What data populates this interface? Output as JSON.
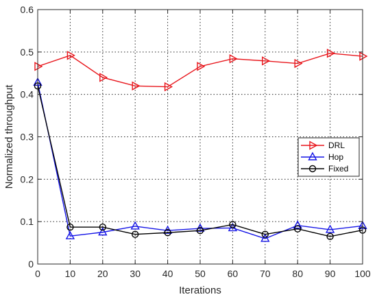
{
  "chart_data": {
    "type": "line",
    "title": "",
    "xlabel": "Iterations",
    "ylabel": "Normalized throughput",
    "x": [
      0,
      10,
      20,
      30,
      40,
      50,
      60,
      70,
      80,
      90,
      100
    ],
    "xlim": [
      0,
      100
    ],
    "ylim": [
      0,
      0.6
    ],
    "xticks": [
      "0",
      "10",
      "20",
      "30",
      "40",
      "50",
      "60",
      "70",
      "80",
      "90",
      "100"
    ],
    "yticks": [
      "0",
      "0.1",
      "0.2",
      "0.3",
      "0.4",
      "0.5",
      "0.6"
    ],
    "grid": true,
    "legend_position": "right",
    "series": [
      {
        "name": "DRL",
        "color": "#e8141a",
        "marker": "triangle-right",
        "values": [
          0.466,
          0.492,
          0.44,
          0.42,
          0.418,
          0.466,
          0.484,
          0.479,
          0.473,
          0.497,
          0.49
        ]
      },
      {
        "name": "Hop",
        "color": "#1414e6",
        "marker": "triangle-up",
        "values": [
          0.428,
          0.066,
          0.075,
          0.089,
          0.079,
          0.084,
          0.085,
          0.06,
          0.091,
          0.081,
          0.09
        ]
      },
      {
        "name": "Fixed",
        "color": "#000000",
        "marker": "circle",
        "values": [
          0.42,
          0.087,
          0.087,
          0.07,
          0.074,
          0.079,
          0.093,
          0.07,
          0.083,
          0.065,
          0.08
        ]
      }
    ]
  }
}
